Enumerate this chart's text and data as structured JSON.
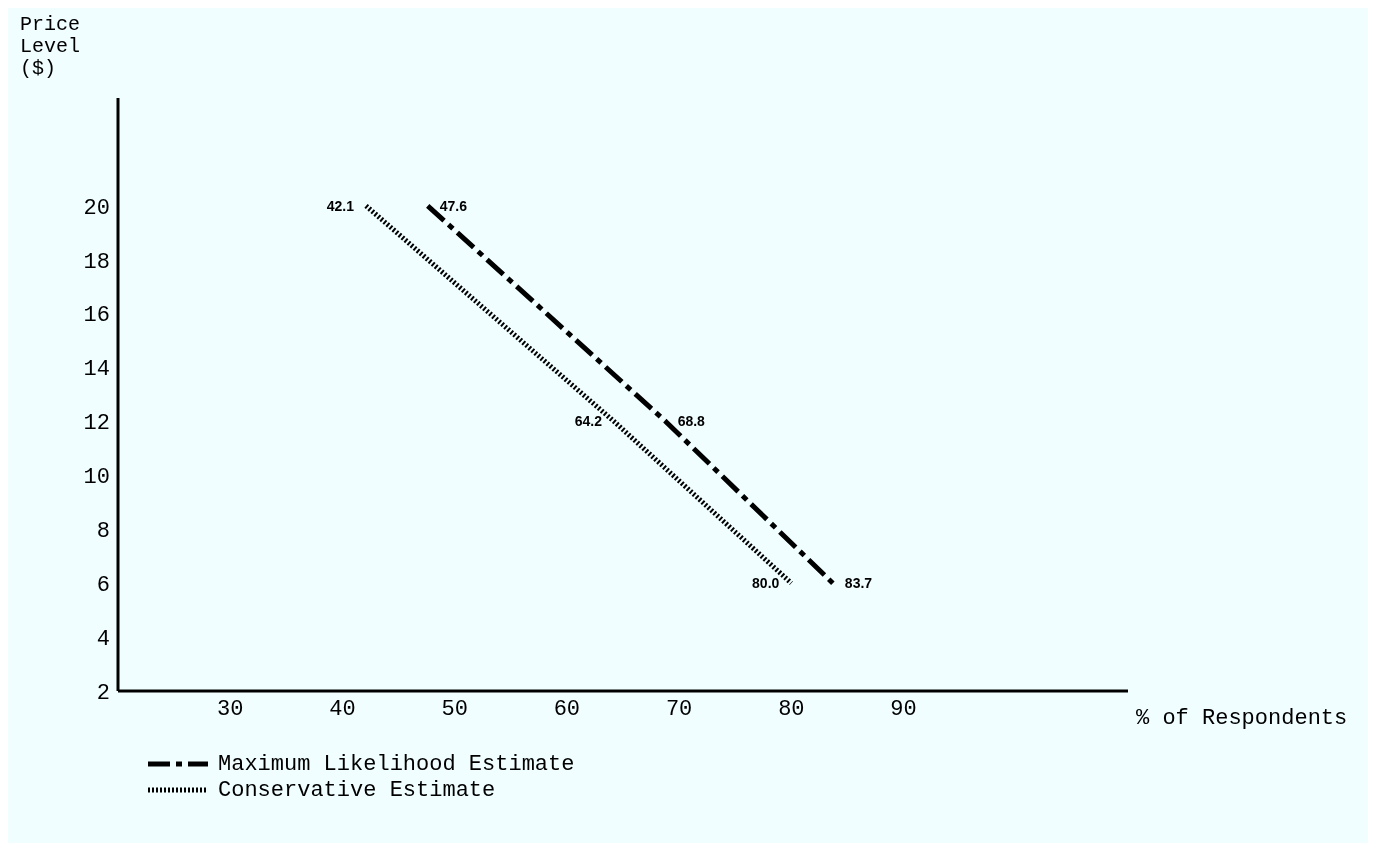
{
  "chart_data": {
    "type": "line",
    "xlabel": "% of Respondents",
    "ylabel": "Price Level ($)",
    "xlim": [
      20,
      110
    ],
    "xticks": [
      30,
      40,
      50,
      60,
      70,
      80,
      90
    ],
    "ylim": [
      2,
      24
    ],
    "yticks": [
      2,
      4,
      6,
      8,
      10,
      12,
      14,
      16,
      18,
      20
    ],
    "grid": false,
    "legend": "bottom",
    "marker": "none",
    "series": [
      {
        "name": "Maximum Likelihood Estimate",
        "color": "#000000",
        "line_style": "dashed",
        "x": [
          47.6,
          68.8,
          83.7
        ],
        "values": [
          20,
          12,
          6
        ]
      },
      {
        "name": "Conservative Estimate",
        "color": "#000000",
        "line_style": "dotted",
        "x": [
          42.1,
          64.2,
          80.0
        ],
        "values": [
          20,
          12,
          6
        ]
      }
    ],
    "annotations": [
      {
        "text": "47.6",
        "x": 47.6,
        "y": 20
      },
      {
        "text": "68.8",
        "x": 68.8,
        "y": 12
      },
      {
        "text": "83.7",
        "x": 83.7,
        "y": 6
      },
      {
        "text": "42.1",
        "x": 42.1,
        "y": 20
      },
      {
        "text": "64.2",
        "x": 64.2,
        "y": 12
      },
      {
        "text": "80.0",
        "x": 80.0,
        "y": 6
      }
    ]
  }
}
